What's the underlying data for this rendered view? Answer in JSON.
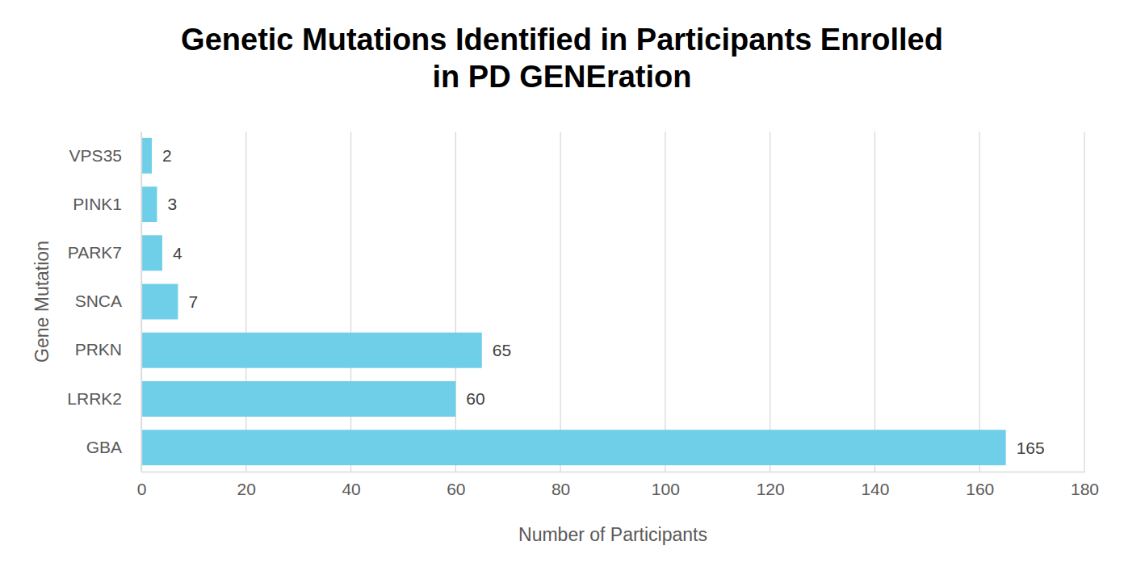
{
  "chart_data": {
    "type": "bar",
    "title": "Genetic Mutations Identified in Participants Enrolled\nin PD GENEration",
    "x_label": "Number of Participants",
    "y_label": "Gene Mutation",
    "categories": [
      "VPS35",
      "PINK1",
      "PARK7",
      "SNCA",
      "PRKN",
      "LRRK2",
      "GBA"
    ],
    "values": [
      2,
      3,
      4,
      7,
      65,
      60,
      165
    ],
    "color": "#70cfe8",
    "orientation": "horizontal",
    "data_labels": true,
    "grid": true,
    "xlim": [
      0,
      180
    ],
    "xticks": [
      0,
      20,
      40,
      60,
      80,
      100,
      120,
      140,
      160,
      180
    ]
  }
}
